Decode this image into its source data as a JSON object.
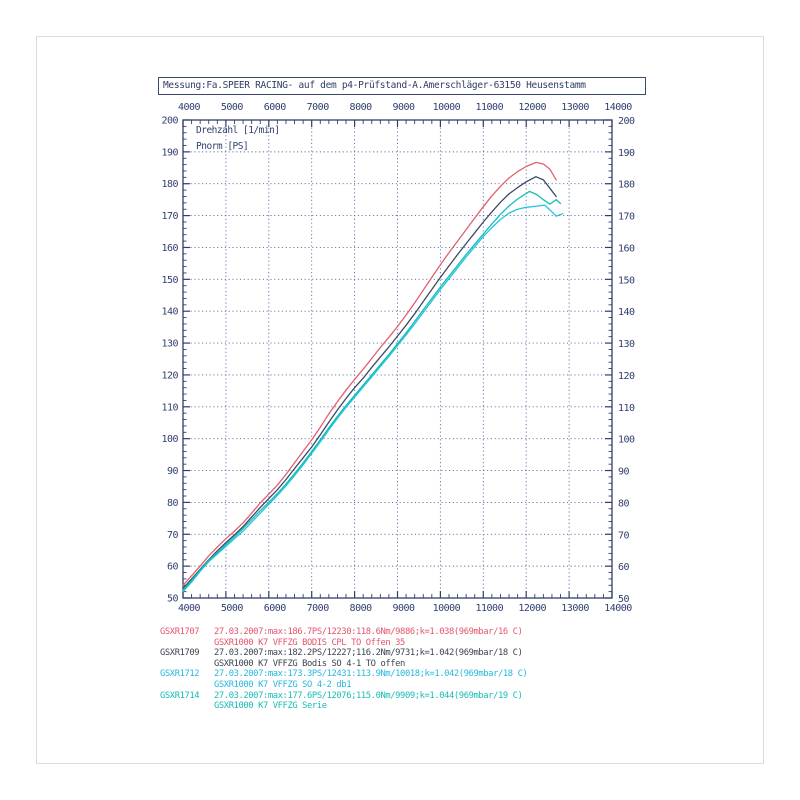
{
  "header": {
    "title": "Messung:Fa.SPEER RACING- auf dem p4-Prüfstand-A.Amerschläger-63150 Heusenstamm"
  },
  "chart_data": {
    "type": "line",
    "title": "",
    "xlabel": "Drehzahl [1/min]",
    "ylabel": "Pnorm [PS]",
    "xlim": [
      4000,
      14000
    ],
    "ylim": [
      50,
      200
    ],
    "x_major_ticks": [
      4000,
      5000,
      6000,
      7000,
      8000,
      9000,
      10000,
      11000,
      12000,
      13000,
      14000
    ],
    "y_major_ticks": [
      50,
      60,
      70,
      80,
      90,
      100,
      110,
      120,
      130,
      140,
      150,
      160,
      170,
      180,
      190,
      200
    ],
    "x_minor_step": 200,
    "y_minor_step": 2,
    "grid": "dotted",
    "legend_position": "below",
    "axis_color": "#2f3f66",
    "grid_color": "#5a6ca8",
    "label_color": "#2e3f6e",
    "series": [
      {
        "name": "GSXR1707",
        "color": "#e0606e",
        "points": [
          [
            4000,
            54
          ],
          [
            4200,
            57
          ],
          [
            4400,
            60
          ],
          [
            4600,
            63.2
          ],
          [
            4800,
            66
          ],
          [
            5000,
            68.6
          ],
          [
            5200,
            71
          ],
          [
            5400,
            73.6
          ],
          [
            5600,
            76.6
          ],
          [
            5800,
            79.8
          ],
          [
            6000,
            82.6
          ],
          [
            6200,
            85.4
          ],
          [
            6400,
            88.8
          ],
          [
            6600,
            92.4
          ],
          [
            6800,
            96
          ],
          [
            7000,
            99.6
          ],
          [
            7200,
            103.6
          ],
          [
            7400,
            107.8
          ],
          [
            7600,
            111.6
          ],
          [
            7800,
            115.2
          ],
          [
            8000,
            118.6
          ],
          [
            8200,
            121.8
          ],
          [
            8400,
            125.2
          ],
          [
            8600,
            128.6
          ],
          [
            8800,
            131.8
          ],
          [
            9000,
            135.2
          ],
          [
            9200,
            138.8
          ],
          [
            9400,
            142.6
          ],
          [
            9600,
            146.6
          ],
          [
            9800,
            150.6
          ],
          [
            10000,
            154.6
          ],
          [
            10200,
            158.4
          ],
          [
            10400,
            162
          ],
          [
            10600,
            165.6
          ],
          [
            10800,
            169.2
          ],
          [
            11000,
            172.8
          ],
          [
            11200,
            176.2
          ],
          [
            11400,
            179.2
          ],
          [
            11600,
            181.8
          ],
          [
            11800,
            183.8
          ],
          [
            12000,
            185.4
          ],
          [
            12230,
            186.7
          ],
          [
            12400,
            186.2
          ],
          [
            12550,
            184.6
          ],
          [
            12700,
            181.2
          ]
        ]
      },
      {
        "name": "GSXR1709",
        "color": "#3c4a68",
        "points": [
          [
            4000,
            53
          ],
          [
            4200,
            56
          ],
          [
            4400,
            59
          ],
          [
            4600,
            62
          ],
          [
            4800,
            64.8
          ],
          [
            5000,
            67.4
          ],
          [
            5200,
            69.8
          ],
          [
            5400,
            72.4
          ],
          [
            5600,
            75.4
          ],
          [
            5800,
            78.4
          ],
          [
            6000,
            81.2
          ],
          [
            6200,
            84
          ],
          [
            6400,
            87.2
          ],
          [
            6600,
            90.6
          ],
          [
            6800,
            94
          ],
          [
            7000,
            97.4
          ],
          [
            7200,
            101.2
          ],
          [
            7400,
            105.2
          ],
          [
            7600,
            109
          ],
          [
            7800,
            112.6
          ],
          [
            8000,
            116
          ],
          [
            8200,
            119
          ],
          [
            8400,
            122.4
          ],
          [
            8600,
            125.6
          ],
          [
            8800,
            128.8
          ],
          [
            9000,
            132.2
          ],
          [
            9200,
            135.6
          ],
          [
            9400,
            139.2
          ],
          [
            9600,
            143
          ],
          [
            9800,
            146.8
          ],
          [
            10000,
            150.6
          ],
          [
            10200,
            154.2
          ],
          [
            10400,
            157.8
          ],
          [
            10600,
            161.2
          ],
          [
            10800,
            164.6
          ],
          [
            11000,
            168
          ],
          [
            11200,
            171.2
          ],
          [
            11400,
            174.2
          ],
          [
            11600,
            176.8
          ],
          [
            11800,
            178.8
          ],
          [
            12000,
            180.6
          ],
          [
            12227,
            182.2
          ],
          [
            12400,
            181.2
          ],
          [
            12550,
            178.6
          ],
          [
            12700,
            176
          ]
        ]
      },
      {
        "name": "GSXR1712",
        "color": "#22c3e0",
        "points": [
          [
            4000,
            52
          ],
          [
            4200,
            55
          ],
          [
            4400,
            58.4
          ],
          [
            4600,
            61.4
          ],
          [
            4800,
            63.8
          ],
          [
            5000,
            66.2
          ],
          [
            5200,
            68.6
          ],
          [
            5400,
            71
          ],
          [
            5600,
            73.8
          ],
          [
            5800,
            76.6
          ],
          [
            6000,
            79.4
          ],
          [
            6200,
            82.2
          ],
          [
            6400,
            85.2
          ],
          [
            6600,
            88.4
          ],
          [
            6800,
            91.8
          ],
          [
            7000,
            95.4
          ],
          [
            7200,
            99
          ],
          [
            7400,
            102.8
          ],
          [
            7600,
            106.4
          ],
          [
            7800,
            109.8
          ],
          [
            8000,
            113
          ],
          [
            8200,
            116.2
          ],
          [
            8400,
            119.4
          ],
          [
            8600,
            122.6
          ],
          [
            8800,
            125.8
          ],
          [
            9000,
            129.2
          ],
          [
            9200,
            132.6
          ],
          [
            9400,
            136
          ],
          [
            9600,
            139.6
          ],
          [
            9800,
            143.2
          ],
          [
            10000,
            146.8
          ],
          [
            10200,
            150.2
          ],
          [
            10400,
            153.6
          ],
          [
            10600,
            157
          ],
          [
            10800,
            160.2
          ],
          [
            11000,
            163.4
          ],
          [
            11200,
            166.2
          ],
          [
            11400,
            168.8
          ],
          [
            11600,
            170.8
          ],
          [
            11800,
            172
          ],
          [
            12000,
            172.6
          ],
          [
            12200,
            172.9
          ],
          [
            12431,
            173.3
          ],
          [
            12600,
            171.2
          ],
          [
            12700,
            169.8
          ],
          [
            12850,
            170.6
          ]
        ]
      },
      {
        "name": "GSXR1714",
        "color": "#14bdb4",
        "points": [
          [
            4000,
            52.5
          ],
          [
            4200,
            55.5
          ],
          [
            4400,
            58.8
          ],
          [
            4600,
            61.8
          ],
          [
            4800,
            64.2
          ],
          [
            5000,
            66.8
          ],
          [
            5200,
            69.2
          ],
          [
            5400,
            71.8
          ],
          [
            5600,
            74.6
          ],
          [
            5800,
            77.4
          ],
          [
            6000,
            80
          ],
          [
            6200,
            82.8
          ],
          [
            6400,
            85.8
          ],
          [
            6600,
            89
          ],
          [
            6800,
            92.4
          ],
          [
            7000,
            96
          ],
          [
            7200,
            99.6
          ],
          [
            7400,
            103.4
          ],
          [
            7600,
            107
          ],
          [
            7800,
            110.4
          ],
          [
            8000,
            113.6
          ],
          [
            8200,
            116.8
          ],
          [
            8400,
            120
          ],
          [
            8600,
            123.2
          ],
          [
            8800,
            126.4
          ],
          [
            9000,
            129.8
          ],
          [
            9200,
            133.2
          ],
          [
            9400,
            136.8
          ],
          [
            9600,
            140.4
          ],
          [
            9800,
            144
          ],
          [
            10000,
            147.6
          ],
          [
            10200,
            151
          ],
          [
            10400,
            154.4
          ],
          [
            10600,
            157.8
          ],
          [
            10800,
            161
          ],
          [
            11000,
            164.2
          ],
          [
            11200,
            167.4
          ],
          [
            11400,
            170.4
          ],
          [
            11600,
            173
          ],
          [
            11800,
            175.2
          ],
          [
            12076,
            177.6
          ],
          [
            12250,
            176.6
          ],
          [
            12400,
            175
          ],
          [
            12550,
            173.6
          ],
          [
            12700,
            175
          ],
          [
            12800,
            173.8
          ]
        ]
      }
    ]
  },
  "legend": {
    "entries": [
      {
        "id": "GSXR1707",
        "color": "#e4556a",
        "line1": "27.03.2007:max:186.7PS/12230:118.6Nm/9886;k=1.038(969mbar/16 C)",
        "line2": "GSXR1000 K7 VFFZG BODIS CPL TO Offen 35"
      },
      {
        "id": "GSXR1709",
        "color": "#3d4350",
        "line1": "27.03.2007:max:182.2PS/12227;116.2Nm/9731;k=1.042(969mbar/18 C)",
        "line2": "GSXR1000 K7 VFFZG Bodis SO 4-1 TO offen"
      },
      {
        "id": "GSXR1712",
        "color": "#25b9dd",
        "line1": "27.03.2007:max:173.3PS/12431:113.9Nm/10018;k=1.042(969mbar/18 C)",
        "line2": "GSXR1000 K7 VFFZG SO 4-2 db1"
      },
      {
        "id": "GSXR1714",
        "color": "#16bdb4",
        "line1": "27.03.2007:max:177.6PS/12076;115.0Nm/9909;k=1.044(969mbar/19 C)",
        "line2": "GSXR1000 K7 VFFZG Serie"
      }
    ]
  }
}
